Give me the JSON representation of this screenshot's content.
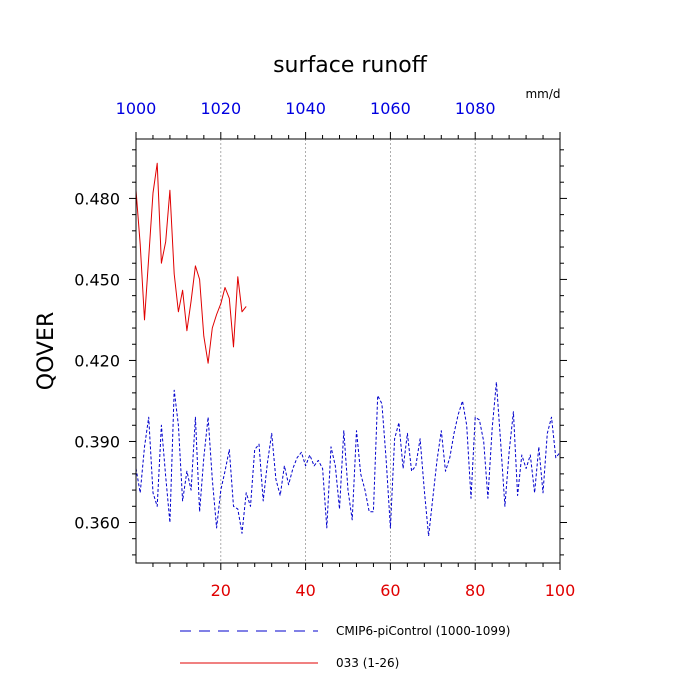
{
  "chart_data": {
    "type": "line",
    "title": "surface runoff",
    "units": "mm/d",
    "ylabel": "QOVER",
    "ylim": [
      0.345,
      0.502
    ],
    "y_ticks": [
      0.36,
      0.39,
      0.42,
      0.45,
      0.48
    ],
    "y_tick_labels": [
      "0.360",
      "0.390",
      "0.420",
      "0.450",
      "0.480"
    ],
    "y_minor_step": 0.006,
    "bottom_axis": {
      "range": [
        0,
        100
      ],
      "ticks": [
        20,
        40,
        60,
        80,
        100
      ],
      "tick_labels": [
        "20",
        "40",
        "60",
        "80",
        "100"
      ],
      "minor_step": 4,
      "label_color": "#e00000"
    },
    "top_axis": {
      "range": [
        1000,
        1100
      ],
      "ticks": [
        1000,
        1020,
        1040,
        1060,
        1080
      ],
      "tick_labels": [
        "1000",
        "1020",
        "1040",
        "1060",
        "1080"
      ],
      "minor_step": 4,
      "label_color": "#0000e0"
    },
    "gridlines_x": [
      20,
      40,
      60,
      80
    ],
    "legend_placement": "bottom",
    "series": [
      {
        "name": "CMIP6-piControl (1000-1099)",
        "color": "#0000cc",
        "dash": "dashed",
        "x": [
          0,
          1,
          2,
          3,
          4,
          5,
          6,
          7,
          8,
          9,
          10,
          11,
          12,
          13,
          14,
          15,
          16,
          17,
          18,
          19,
          20,
          21,
          22,
          23,
          24,
          25,
          26,
          27,
          28,
          29,
          30,
          31,
          32,
          33,
          34,
          35,
          36,
          37,
          38,
          39,
          40,
          41,
          42,
          43,
          44,
          45,
          46,
          47,
          48,
          49,
          50,
          51,
          52,
          53,
          54,
          55,
          56,
          57,
          58,
          59,
          60,
          61,
          62,
          63,
          64,
          65,
          66,
          67,
          68,
          69,
          70,
          71,
          72,
          73,
          74,
          75,
          76,
          77,
          78,
          79,
          80,
          81,
          82,
          83,
          84,
          85,
          86,
          87,
          88,
          89,
          90,
          91,
          92,
          93,
          94,
          95,
          96,
          97,
          98,
          99,
          100
        ],
        "y": [
          0.38,
          0.371,
          0.388,
          0.399,
          0.371,
          0.366,
          0.396,
          0.377,
          0.36,
          0.409,
          0.396,
          0.368,
          0.379,
          0.372,
          0.399,
          0.364,
          0.384,
          0.399,
          0.376,
          0.358,
          0.372,
          0.379,
          0.387,
          0.366,
          0.365,
          0.356,
          0.371,
          0.366,
          0.387,
          0.389,
          0.368,
          0.382,
          0.393,
          0.376,
          0.37,
          0.381,
          0.374,
          0.38,
          0.384,
          0.386,
          0.381,
          0.385,
          0.381,
          0.383,
          0.38,
          0.358,
          0.388,
          0.381,
          0.365,
          0.394,
          0.372,
          0.361,
          0.394,
          0.378,
          0.372,
          0.364,
          0.364,
          0.407,
          0.404,
          0.383,
          0.358,
          0.391,
          0.397,
          0.38,
          0.393,
          0.379,
          0.381,
          0.391,
          0.372,
          0.355,
          0.369,
          0.383,
          0.394,
          0.379,
          0.384,
          0.393,
          0.4,
          0.405,
          0.396,
          0.369,
          0.399,
          0.398,
          0.39,
          0.369,
          0.395,
          0.412,
          0.39,
          0.366,
          0.386,
          0.401,
          0.37,
          0.385,
          0.38,
          0.385,
          0.371,
          0.388,
          0.371,
          0.393,
          0.399,
          0.384,
          0.386
        ]
      },
      {
        "name": "033 (1-26)",
        "color": "#e00000",
        "dash": "solid",
        "x": [
          0,
          1,
          2,
          3,
          4,
          5,
          6,
          7,
          8,
          9,
          10,
          11,
          12,
          13,
          14,
          15,
          16,
          17,
          18,
          19,
          20,
          21,
          22,
          23,
          24,
          25,
          26
        ],
        "y": [
          0.483,
          0.463,
          0.435,
          0.458,
          0.482,
          0.493,
          0.456,
          0.464,
          0.483,
          0.452,
          0.438,
          0.446,
          0.431,
          0.442,
          0.455,
          0.45,
          0.429,
          0.419,
          0.432,
          0.437,
          0.441,
          0.447,
          0.443,
          0.425,
          0.451,
          0.438,
          0.44
        ]
      }
    ]
  }
}
